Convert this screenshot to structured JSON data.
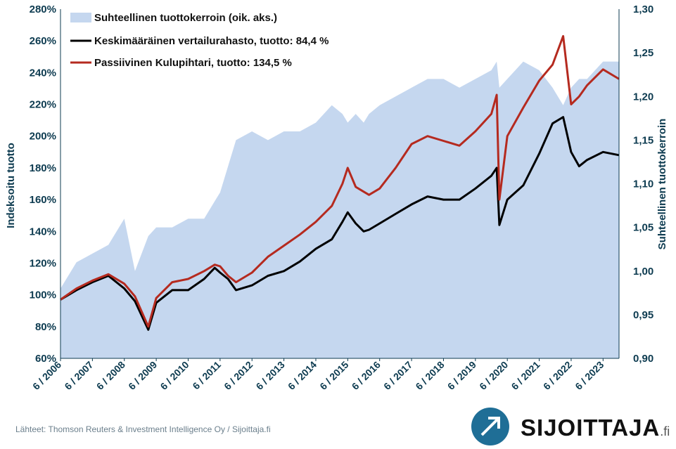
{
  "chart_data": {
    "type": "line+area",
    "title": "",
    "ylabel_left": "Indeksoitu tuotto",
    "ylabel_right": "Suhteellinen tuottokerroin",
    "yticks_left": [
      "60%",
      "80%",
      "100%",
      "120%",
      "140%",
      "160%",
      "180%",
      "200%",
      "220%",
      "240%",
      "260%",
      "280%"
    ],
    "yticks_right": [
      "0,90",
      "0,95",
      "1,00",
      "1,05",
      "1,10",
      "1,15",
      "1,20",
      "1,25",
      "1,30"
    ],
    "xticks": [
      "6 / 2006",
      "6 / 2007",
      "6 / 2008",
      "6 / 2009",
      "6 / 2010",
      "6 / 2011",
      "6 / 2012",
      "6 / 2013",
      "6 / 2014",
      "6 / 2015",
      "6 / 2016",
      "6 / 2017",
      "6 / 2018",
      "6 / 2019",
      "6 / 2020",
      "6 / 2021",
      "6 / 2022",
      "6 / 2023"
    ],
    "ylim_left": [
      60,
      280
    ],
    "ylim_right": [
      0.9,
      1.3
    ],
    "legend_position": "top-left",
    "grid": false,
    "colors": {
      "area": "#c5d7ef",
      "fund": "#000000",
      "passive": "#b52a1f",
      "axis_text": "#0d3b50"
    },
    "x": [
      "6/2006",
      "12/2006",
      "6/2007",
      "12/2007",
      "6/2008",
      "10/2008",
      "3/2009",
      "6/2009",
      "12/2009",
      "6/2010",
      "12/2010",
      "4/2011",
      "6/2011",
      "9/2011",
      "12/2011",
      "6/2012",
      "12/2012",
      "6/2013",
      "12/2013",
      "6/2014",
      "12/2014",
      "4/2015",
      "6/2015",
      "9/2015",
      "12/2015",
      "2/2016",
      "6/2016",
      "12/2016",
      "6/2017",
      "12/2017",
      "6/2018",
      "12/2018",
      "6/2019",
      "12/2019",
      "2/2020",
      "3/2020",
      "6/2020",
      "12/2020",
      "6/2021",
      "11/2021",
      "3/2022",
      "6/2022",
      "9/2022",
      "12/2022",
      "6/2023",
      "12/2023"
    ],
    "series": [
      {
        "name": "Suhteellinen tuottokerroin (oik. aks.)",
        "axis": "right",
        "type": "area",
        "values": [
          0.98,
          1.01,
          1.02,
          1.03,
          1.06,
          1.0,
          1.04,
          1.05,
          1.05,
          1.06,
          1.06,
          1.08,
          1.09,
          1.12,
          1.15,
          1.16,
          1.15,
          1.16,
          1.16,
          1.17,
          1.19,
          1.18,
          1.17,
          1.18,
          1.17,
          1.18,
          1.19,
          1.2,
          1.21,
          1.22,
          1.22,
          1.21,
          1.22,
          1.23,
          1.24,
          1.21,
          1.22,
          1.24,
          1.23,
          1.21,
          1.19,
          1.21,
          1.22,
          1.22,
          1.24,
          1.24
        ]
      },
      {
        "name": "Keskimääräinen vertailurahasto, tuotto: 84,4 %",
        "axis": "left",
        "type": "line",
        "values": [
          97,
          103,
          108,
          112,
          104,
          96,
          78,
          95,
          103,
          103,
          110,
          117,
          114,
          110,
          103,
          106,
          112,
          115,
          121,
          129,
          135,
          146,
          152,
          145,
          140,
          141,
          145,
          151,
          157,
          162,
          160,
          160,
          167,
          175,
          180,
          144,
          160,
          169,
          189,
          208,
          212,
          190,
          181,
          185,
          190,
          188
        ]
      },
      {
        "name": "Passiivinen Kulupihtari, tuotto: 134,5 %",
        "axis": "left",
        "type": "line",
        "values": [
          97,
          104,
          109,
          113,
          107,
          99,
          80,
          98,
          108,
          110,
          115,
          119,
          118,
          112,
          108,
          114,
          124,
          131,
          138,
          146,
          156,
          170,
          180,
          168,
          165,
          163,
          167,
          180,
          195,
          200,
          197,
          194,
          203,
          214,
          226,
          160,
          200,
          218,
          235,
          245,
          263,
          220,
          225,
          232,
          242,
          236
        ]
      }
    ]
  },
  "source_text": "Lähteet: Thomson Reuters & Investment Intelligence Oy / Sijoittaja.fi",
  "logo": {
    "name": "SIJOITTAJA",
    "suffix": ".fi",
    "icon": "arrow-up-right-icon"
  }
}
